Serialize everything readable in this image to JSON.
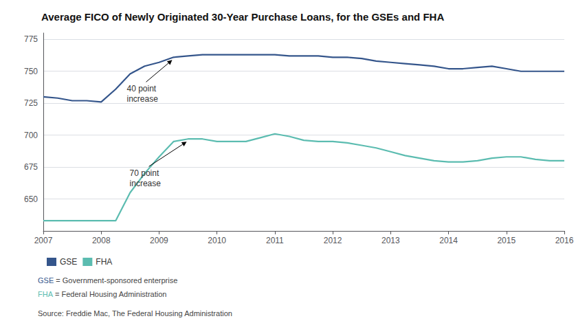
{
  "chart_data": {
    "type": "line",
    "title": "Average FICO of Newly Originated 30-Year Purchase Loans, for the GSEs and FHA",
    "x": [
      2007.0,
      2007.25,
      2007.5,
      2007.75,
      2008.0,
      2008.25,
      2008.5,
      2008.75,
      2009.0,
      2009.25,
      2009.5,
      2009.75,
      2010.0,
      2010.25,
      2010.5,
      2010.75,
      2011.0,
      2011.25,
      2011.5,
      2011.75,
      2012.0,
      2012.25,
      2012.5,
      2012.75,
      2013.0,
      2013.25,
      2013.5,
      2013.75,
      2014.0,
      2014.25,
      2014.5,
      2014.75,
      2015.0,
      2015.25,
      2015.5,
      2015.75,
      2016.0
    ],
    "series": [
      {
        "name": "GSE",
        "color": "#34558b",
        "values": [
          730,
          729,
          727,
          727,
          726,
          736,
          748,
          754,
          757,
          761,
          762,
          763,
          763,
          763,
          763,
          763,
          763,
          762,
          762,
          762,
          761,
          761,
          760,
          758,
          757,
          756,
          755,
          754,
          752,
          752,
          753,
          754,
          752,
          750,
          750,
          750,
          750
        ]
      },
      {
        "name": "FHA",
        "color": "#5bbcb0",
        "values": [
          633,
          633,
          633,
          633,
          633,
          633,
          655,
          670,
          683,
          695,
          697,
          697,
          695,
          695,
          695,
          698,
          701,
          699,
          696,
          695,
          695,
          694,
          692,
          690,
          687,
          684,
          682,
          680,
          679,
          679,
          680,
          682,
          683,
          683,
          681,
          680,
          680
        ]
      }
    ],
    "xlim": [
      2007,
      2016
    ],
    "xticks": [
      2007,
      2008,
      2009,
      2010,
      2011,
      2012,
      2013,
      2014,
      2015,
      2016
    ],
    "ylim": [
      625,
      780
    ],
    "yticks": [
      650,
      675,
      700,
      725,
      750,
      775
    ],
    "grid": true,
    "legend": "bottom left",
    "annotations": [
      {
        "text": "40 point\nincrease",
        "series": "GSE"
      },
      {
        "text": "70 point\nincrease",
        "series": "FHA"
      }
    ],
    "footnotes": [
      {
        "term": "GSE",
        "text": " = Government-sponsored enterprise"
      },
      {
        "term": "FHA",
        "text": " = Federal Housing Administration"
      }
    ],
    "source": "Source: Freddie Mac, The Federal Housing Administration"
  }
}
